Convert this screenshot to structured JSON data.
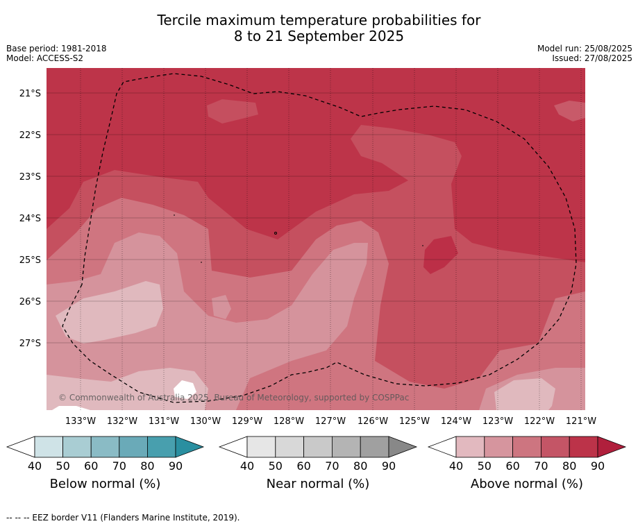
{
  "title_line1": "Tercile maximum temperature probabilities for",
  "title_line2": "8 to 21 September 2025",
  "base_period": "Base period: 1981-2018",
  "model": "Model: ACCESS-S2",
  "model_run": "Model run: 25/08/2025",
  "issued": "Issued: 27/08/2025",
  "copyright": "© Commonwealth of Australia 2025, Bureau of Meteorology, supported by COSPPac",
  "lat_labels": [
    "21°S",
    "22°S",
    "23°S",
    "24°S",
    "25°S",
    "26°S",
    "27°S"
  ],
  "lon_labels": [
    "133°W",
    "132°W",
    "131°W",
    "130°W",
    "129°W",
    "128°W",
    "127°W",
    "126°W",
    "125°W",
    "124°W",
    "123°W",
    "122°W",
    "121°W"
  ],
  "colorbars": [
    {
      "label": "Below normal (%)",
      "ticks": [
        "40",
        "50",
        "60",
        "70",
        "80",
        "90"
      ],
      "colors": [
        "#ffffff",
        "#cfe3e7",
        "#a9cdd3",
        "#8abbc5",
        "#6aaab8",
        "#489fae",
        "#2a8fa0"
      ]
    },
    {
      "label": "Near normal (%)",
      "ticks": [
        "40",
        "50",
        "60",
        "70",
        "80",
        "90"
      ],
      "colors": [
        "#ffffff",
        "#e6e6e6",
        "#d8d8d8",
        "#c9c9c9",
        "#b4b4b4",
        "#a0a0a0",
        "#888888"
      ]
    },
    {
      "label": "Above normal (%)",
      "ticks": [
        "40",
        "50",
        "60",
        "70",
        "80",
        "90"
      ],
      "colors": [
        "#ffffff",
        "#e2b9bf",
        "#d6959e",
        "#cd7580",
        "#c45566",
        "#bc3349",
        "#b01f3c"
      ]
    }
  ],
  "footer": "-- -- -- EEZ border V11 (Flanders Marine Institute, 2019)."
}
